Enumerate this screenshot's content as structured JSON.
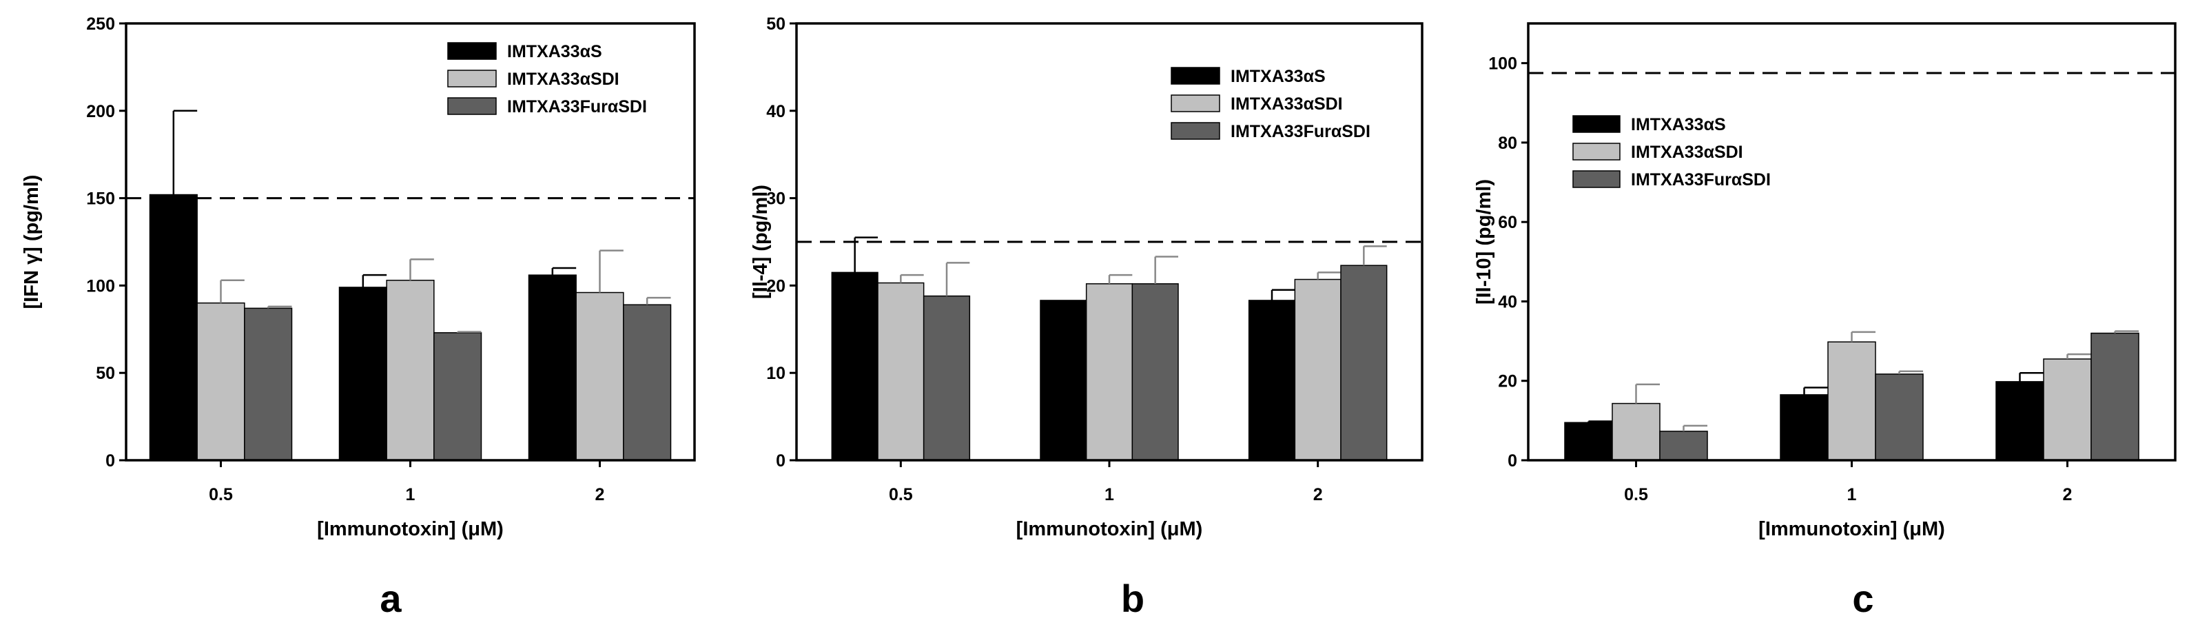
{
  "figure": {
    "colors": {
      "series": [
        "#000000",
        "#c0c0c0",
        "#5f5f5f"
      ],
      "axis": "#000000",
      "reference_line": "#000000"
    }
  },
  "chart_data": [
    {
      "type": "bar",
      "panel_label": "a",
      "categories": [
        "0.5",
        "1",
        "2"
      ],
      "series": [
        {
          "name": "IMTXA33αS",
          "values": [
            152,
            99,
            106
          ],
          "errors": [
            48,
            7,
            4
          ]
        },
        {
          "name": "IMTXA33αSDI",
          "values": [
            90,
            103,
            96
          ],
          "errors": [
            13,
            12,
            24
          ]
        },
        {
          "name": "IMTXA33FurαSDI",
          "values": [
            87,
            73,
            89
          ],
          "errors": [
            1,
            0.5,
            4
          ]
        }
      ],
      "reference_line": 150,
      "xlabel": "[Immunotoxin] (μM)",
      "ylabel": "[IFN γ] (pg/ml)",
      "ylim": [
        0,
        250
      ],
      "yticks": [
        "0",
        "50",
        "100",
        "150",
        "200",
        "250"
      ],
      "legend_position": "top-right"
    },
    {
      "type": "bar",
      "panel_label": "b",
      "categories": [
        "0.5",
        "1",
        "2"
      ],
      "series": [
        {
          "name": "IMTXA33αS",
          "values": [
            21.5,
            18.3,
            18.3
          ],
          "errors": [
            4,
            0,
            1.2
          ]
        },
        {
          "name": "IMTXA33αSDI",
          "values": [
            20.3,
            20.2,
            20.7
          ],
          "errors": [
            0.9,
            1,
            0.8
          ]
        },
        {
          "name": "IMTXA33FurαSDI",
          "values": [
            18.8,
            20.2,
            22.3
          ],
          "errors": [
            3.8,
            3.1,
            2.2
          ]
        }
      ],
      "reference_line": 25,
      "xlabel": "[Immunotoxin] (μM)",
      "ylabel": "[Il-4] (pg/ml)",
      "ylim": [
        0,
        50
      ],
      "yticks": [
        "0",
        "10",
        "20",
        "30",
        "40",
        "50"
      ],
      "legend_position": "top-right"
    },
    {
      "type": "bar",
      "panel_label": "c",
      "categories": [
        "0.5",
        "1",
        "2"
      ],
      "series": [
        {
          "name": "IMTXA33αS",
          "values": [
            9.5,
            16.5,
            19.8
          ],
          "errors": [
            0.3,
            1.8,
            2.2
          ]
        },
        {
          "name": "IMTXA33αSDI",
          "values": [
            14.3,
            29.8,
            25.5
          ],
          "errors": [
            4.8,
            2.5,
            1.2
          ]
        },
        {
          "name": "IMTXA33FurαSDI",
          "values": [
            7.3,
            21.7,
            32
          ],
          "errors": [
            1.4,
            0.7,
            0.5
          ]
        }
      ],
      "reference_line": 97.5,
      "xlabel": "[Immunotoxin] (μM)",
      "ylabel": "[Il-10] (pg/ml)",
      "ylim": [
        0,
        110
      ],
      "yticks": [
        "0",
        "20",
        "40",
        "60",
        "80",
        "100"
      ],
      "legend_position": "top-left"
    }
  ]
}
